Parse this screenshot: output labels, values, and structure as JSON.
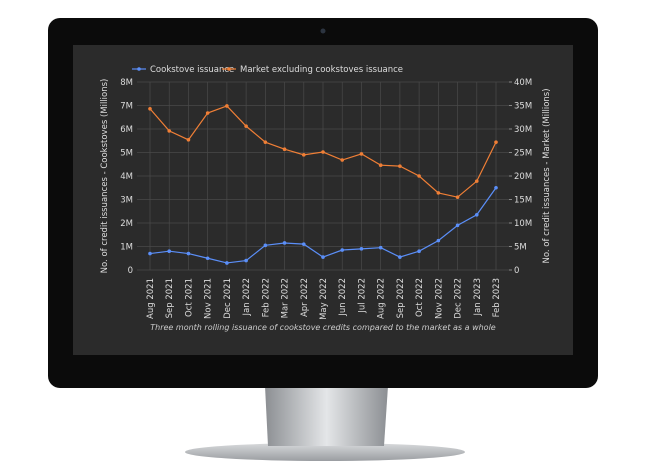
{
  "chart_data": {
    "type": "line",
    "caption": "Three month rolling issuance of cookstove credits compared to the market as a whole",
    "ylabel": "No. of credit issuances - Cookstoves (Millions)",
    "y2label": "No. of credit issuances - Market (Millions)",
    "categories": [
      "Aug 2021",
      "Sep 2021",
      "Oct 2021",
      "Nov 2021",
      "Dec 2021",
      "Jan 2022",
      "Feb 2022",
      "Mar 2022",
      "Apr 2022",
      "May 2022",
      "Jun 2022",
      "Jul 2022",
      "Aug 2022",
      "Sep 2022",
      "Oct 2022",
      "Nov 2022",
      "Dec 2022",
      "Jan 2023",
      "Feb 2023"
    ],
    "series": [
      {
        "name": "Cookstove issuance",
        "color": "#5b8ff9",
        "values": [
          700000,
          800000,
          700000,
          500000,
          300000,
          400000,
          1050000,
          1150000,
          1100000,
          550000,
          850000,
          900000,
          950000,
          550000,
          800000,
          1250000,
          1900000,
          2350000,
          3500000
        ]
      },
      {
        "name": "Market excluding cookstoves issuance",
        "color": "#f07f36",
        "axis": "y2",
        "values": [
          34300000,
          29600000,
          27700000,
          33400000,
          34900000,
          30600000,
          27200000,
          25700000,
          24500000,
          25100000,
          23400000,
          24700000,
          22300000,
          22100000,
          20000000,
          16400000,
          15500000,
          18900000,
          27200000
        ]
      }
    ],
    "ylim": [
      0,
      8000000
    ],
    "yticks": [
      0,
      {
        "value": 1000000,
        "label": "1M"
      },
      {
        "value": 2000000,
        "label": "2M"
      },
      {
        "value": 3000000,
        "label": "3M"
      },
      {
        "value": 4000000,
        "label": "4M"
      },
      {
        "value": 5000000,
        "label": "5M"
      },
      {
        "value": 6000000,
        "label": "6M"
      },
      {
        "value": 7000000,
        "label": "7M"
      },
      {
        "value": 8000000,
        "label": "8M"
      }
    ],
    "y2lim": [
      0,
      40000000
    ],
    "y2ticks": [
      0,
      {
        "value": 5000000,
        "label": "5M"
      },
      {
        "value": 10000000,
        "label": "10M"
      },
      {
        "value": 15000000,
        "label": "15M"
      },
      {
        "value": 20000000,
        "label": "20M"
      },
      {
        "value": 25000000,
        "label": "25M"
      },
      {
        "value": 30000000,
        "label": "30M"
      },
      {
        "value": 35000000,
        "label": "35M"
      },
      {
        "value": 40000000,
        "label": "40M"
      }
    ],
    "grid": true
  }
}
